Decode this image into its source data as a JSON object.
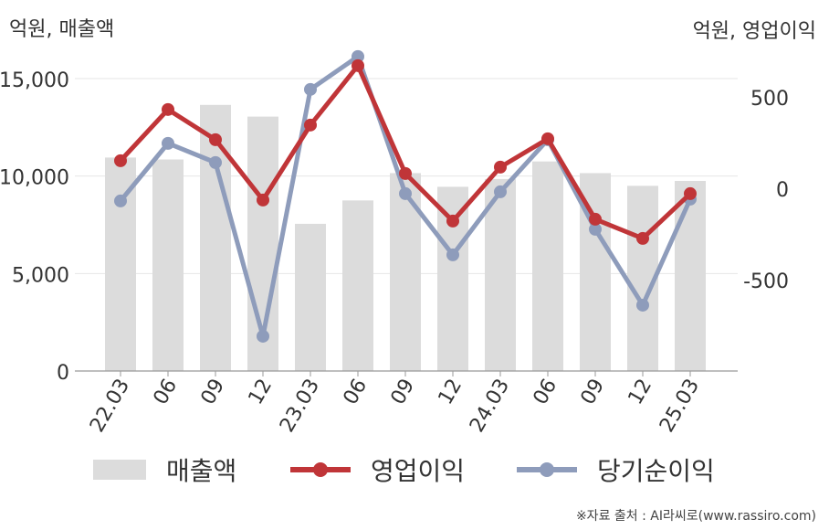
{
  "labels": {
    "left_unit": "억원, 매출액",
    "right_unit": "억원, 영업이익",
    "source": "※자료 출처 : AI라씨로(www.rassiro.com)"
  },
  "legend": [
    {
      "label": "매출액",
      "kind": "bar",
      "color": "#dcdcdc"
    },
    {
      "label": "영업이익",
      "kind": "line",
      "color": "#c03538"
    },
    {
      "label": "당기순이익",
      "kind": "line",
      "color": "#8e9cbb"
    }
  ],
  "chart_data": {
    "type": "bar+line",
    "categories": [
      "22.03",
      "06",
      "09",
      "12",
      "23.03",
      "06",
      "09",
      "12",
      "24.03",
      "06",
      "09",
      "12",
      "25.03"
    ],
    "left_axis": {
      "min": 0,
      "max": 15000,
      "ticks": [
        0,
        5000,
        10000,
        15000
      ],
      "tick_labels": [
        "0",
        "5,000",
        "10,000",
        "15,000"
      ]
    },
    "right_axis": {
      "min": -1000,
      "max": 850,
      "ticks": [
        -500,
        0,
        500
      ],
      "tick_labels": [
        "-500",
        "0",
        "500"
      ]
    },
    "series": [
      {
        "name": "매출액",
        "type": "bar",
        "axis": "left",
        "color": "#dcdcdc",
        "values": [
          10950,
          10850,
          13650,
          13050,
          7550,
          8750,
          10150,
          9450,
          9850,
          10750,
          10150,
          9500,
          9750
        ]
      },
      {
        "name": "영업이익",
        "type": "line",
        "axis": "right",
        "color": "#c03538",
        "values": [
          150,
          430,
          265,
          -65,
          345,
          670,
          80,
          -180,
          115,
          270,
          -170,
          -275,
          -30
        ]
      },
      {
        "name": "당기순이익",
        "type": "line",
        "axis": "right",
        "color": "#8e9cbb",
        "values": [
          -70,
          245,
          140,
          -810,
          540,
          720,
          -30,
          -365,
          -20,
          265,
          -225,
          -640,
          -60
        ]
      }
    ],
    "grid": true
  }
}
